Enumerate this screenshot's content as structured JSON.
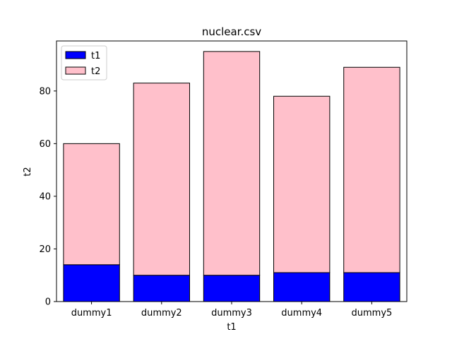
{
  "chart_data": {
    "type": "bar",
    "stacked": true,
    "title": "nuclear.csv",
    "xlabel": "t1",
    "ylabel": "t2",
    "categories": [
      "dummy1",
      "dummy2",
      "dummy3",
      "dummy4",
      "dummy5"
    ],
    "series": [
      {
        "name": "t1",
        "values": [
          14,
          10,
          10,
          11,
          11
        ],
        "color": "#0000ff"
      },
      {
        "name": "t2",
        "values": [
          46,
          73,
          85,
          67,
          78
        ],
        "color": "#ffc0cb"
      }
    ],
    "ylim": [
      0,
      99
    ],
    "yticks": [
      0,
      20,
      40,
      60,
      80
    ],
    "legend_position": "top-left",
    "grid": false,
    "edge_color": "#000000"
  }
}
